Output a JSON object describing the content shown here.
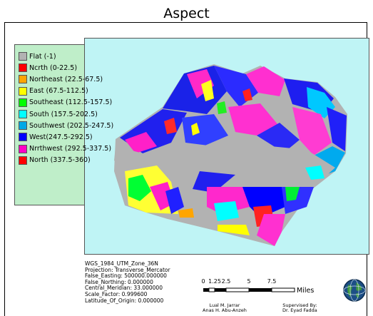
{
  "title": "Aspect",
  "legend": [
    {
      "label": "Flat (-1)",
      "color": "#b2b2b2"
    },
    {
      "label": "Ncrth (0-22.5)",
      "color": "#ff0000"
    },
    {
      "label": "Northeast (22.5-67.5)",
      "color": "#ffa500"
    },
    {
      "label": "East (67.5-112.5)",
      "color": "#ffff00"
    },
    {
      "label": "Southeast (112.5-157.5)",
      "color": "#00ff00"
    },
    {
      "label": "South (157.5-202.5)",
      "color": "#00ffff"
    },
    {
      "label": "Southwest (202.5-247.5)",
      "color": "#00a9e6"
    },
    {
      "label": "West(247.5-292.5)",
      "color": "#0000ff"
    },
    {
      "label": "Nrrthwest (292.5-337.5)",
      "color": "#ff00c5"
    },
    {
      "label": "North (337.5-360)",
      "color": "#ff0000"
    }
  ],
  "projection_info": [
    "WGS_1984_UTM_Zone_36N",
    "Projection: Transverse_Mercator",
    "False_Easting: 500000.000000",
    "False_Northing: 0.000000",
    "Central_Meridian: 33.000000",
    "Scale_Factor: 0.999600",
    "Latitude_Of_Origin: 0.000000"
  ],
  "scale": {
    "ticks": [
      "0",
      "1.25",
      "2.5",
      "5",
      "7.5"
    ],
    "units": "Miles"
  },
  "credits": {
    "authors": [
      "Lual M. Jarrar",
      "Anas H. Abu-Anzeh"
    ],
    "supervisor_label": "Supervised By:",
    "supervisor": "Dr. Eyad Fadda"
  },
  "colors": {
    "data_frame_bg": "#bff4f5",
    "legend_bg": "#bfeec9",
    "flat": "#b2b2b2"
  }
}
